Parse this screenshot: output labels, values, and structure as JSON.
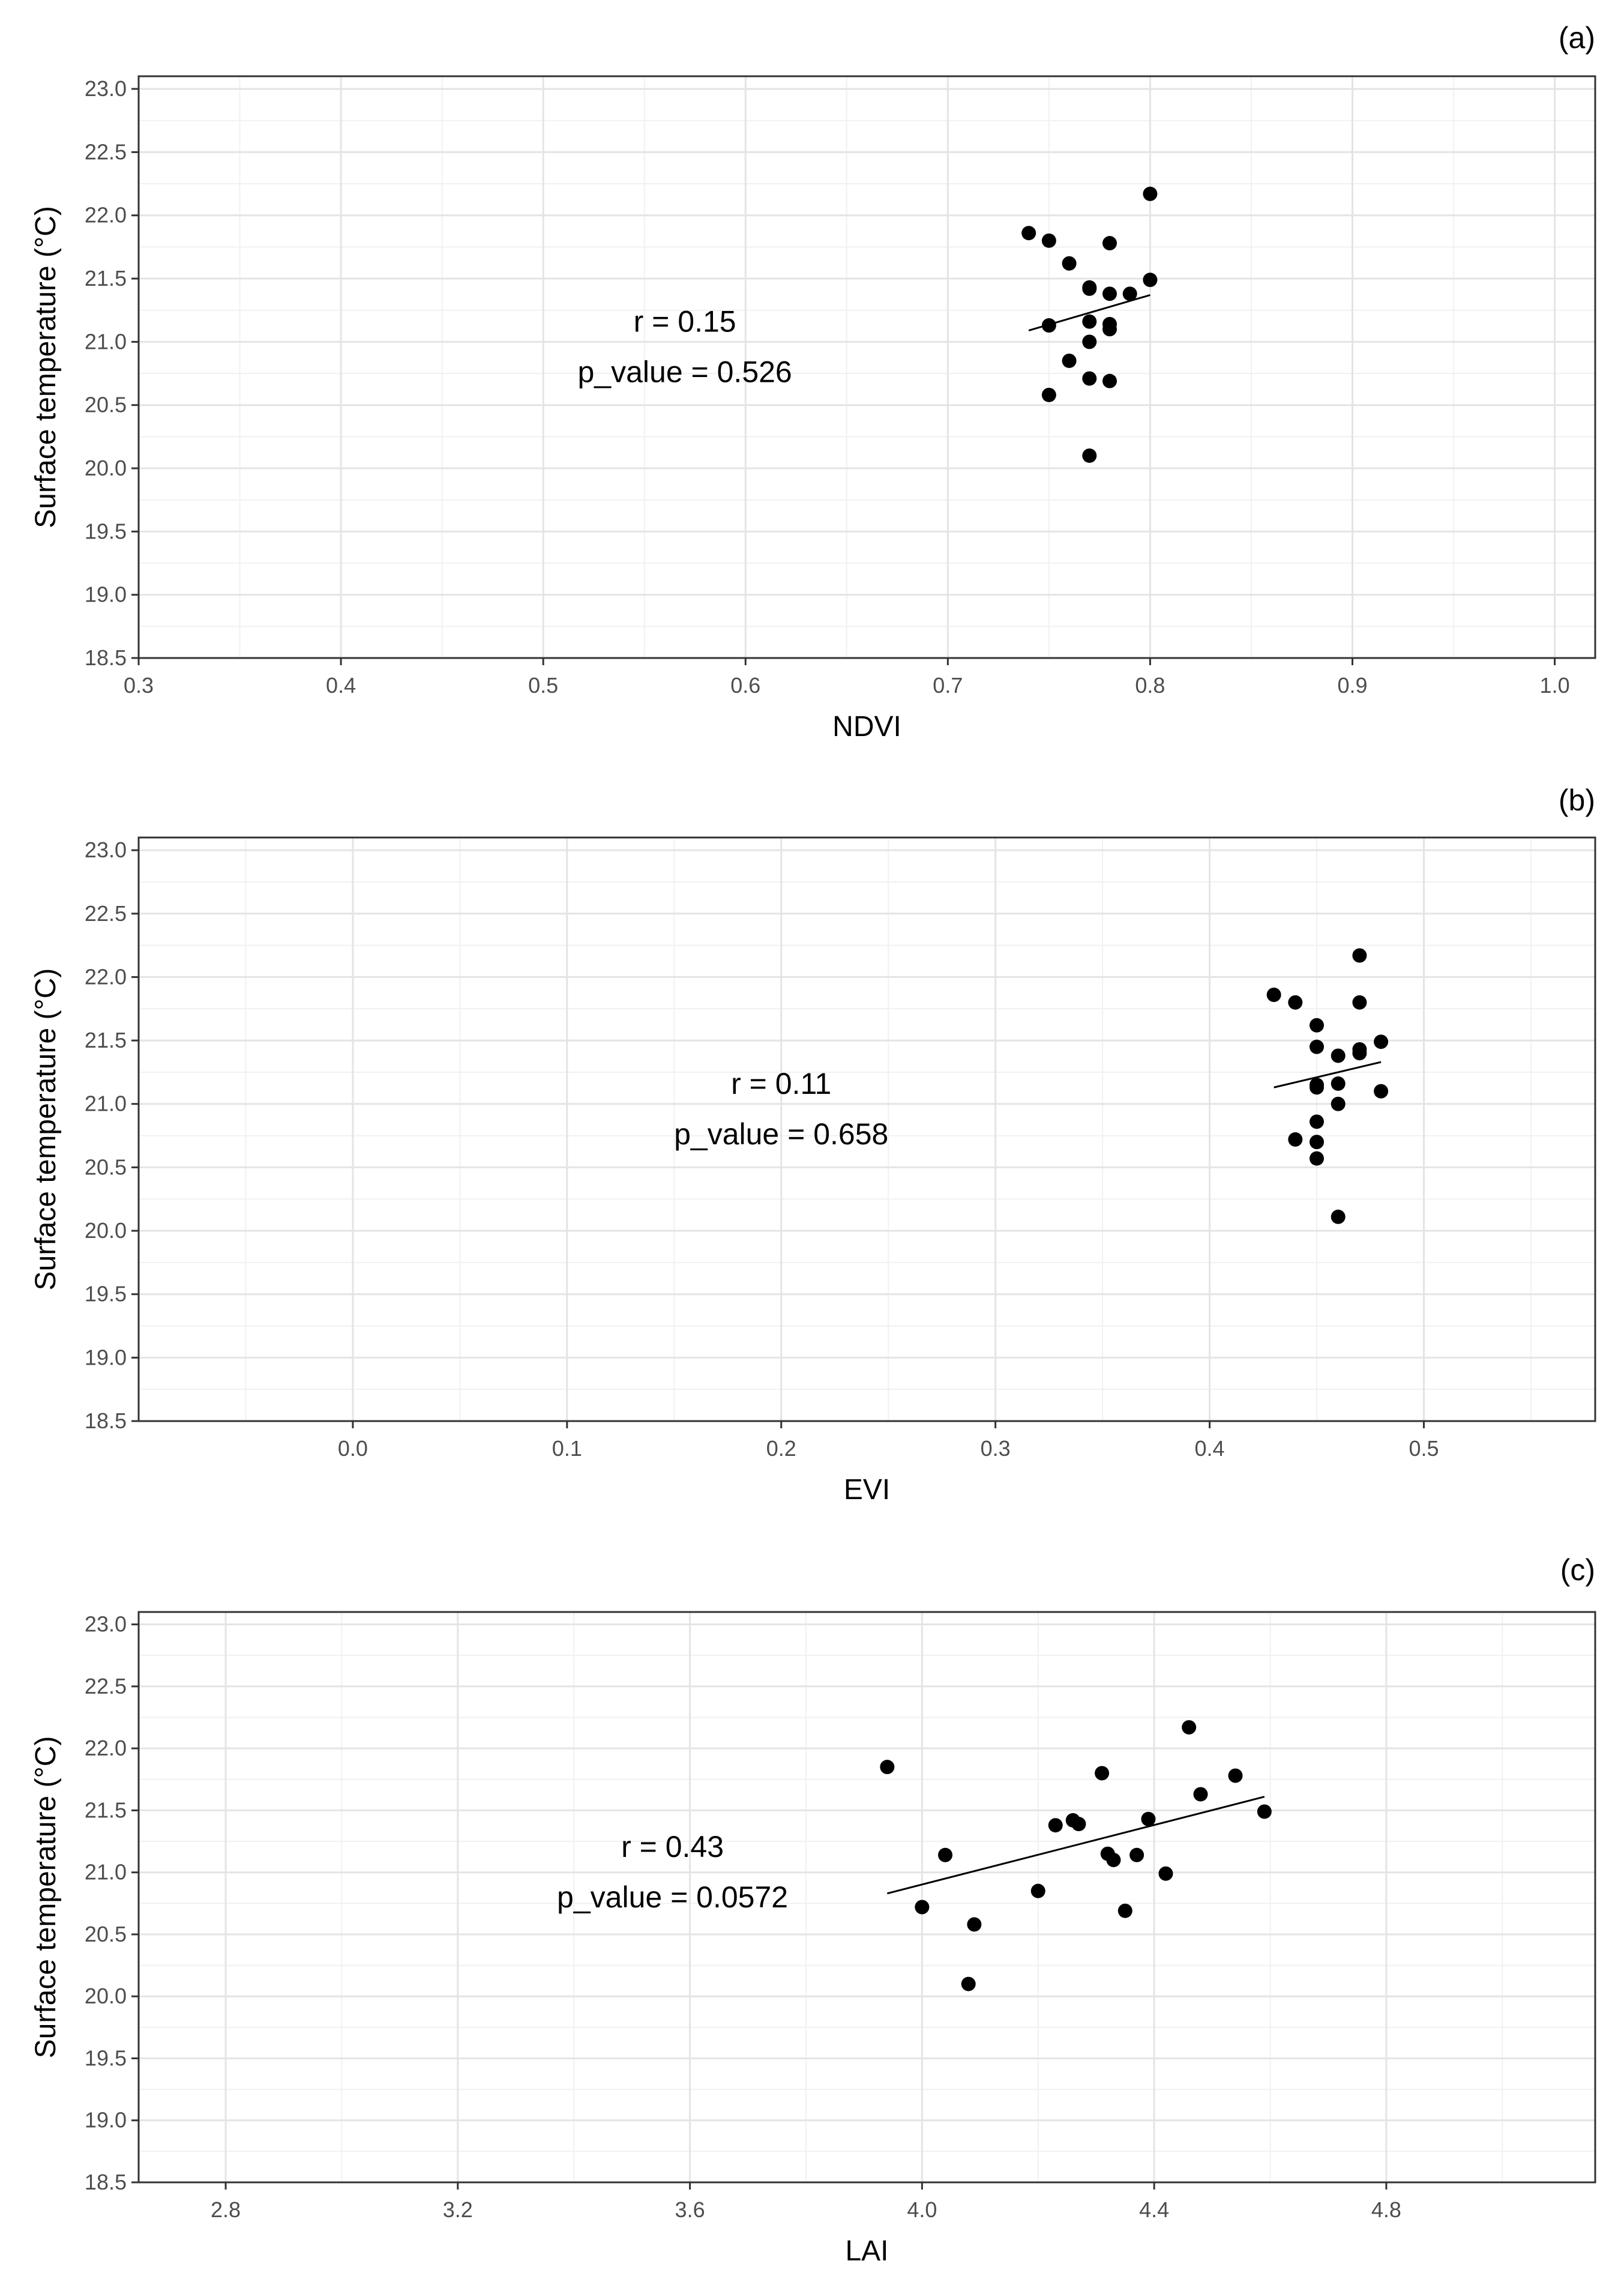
{
  "figure": {
    "point_color": "#000000",
    "line_color": "#000000",
    "grid_major_color": "#e4e4e4",
    "grid_minor_color": "#f1f1f1",
    "panel_border_color": "#333333"
  },
  "chart_data": [
    {
      "type": "scatter",
      "tag": "(a)",
      "xlabel": "NDVI",
      "ylabel": "Surface temperature (°C)",
      "xlim": [
        0.3,
        1.02
      ],
      "ylim": [
        18.5,
        23.1
      ],
      "xticks": [
        0.3,
        0.4,
        0.5,
        0.6,
        0.7,
        0.8,
        0.9,
        1.0
      ],
      "xtick_labels": [
        "0.3",
        "0.4",
        "0.5",
        "0.6",
        "0.7",
        "0.8",
        "0.9",
        "1.0"
      ],
      "yticks": [
        18.5,
        19.0,
        19.5,
        20.0,
        20.5,
        21.0,
        21.5,
        22.0,
        22.5,
        23.0
      ],
      "ytick_labels": [
        "18.5",
        "19.0",
        "19.5",
        "20.0",
        "20.5",
        "21.0",
        "21.5",
        "22.0",
        "22.5",
        "23.0"
      ],
      "grid": true,
      "points": [
        {
          "x": 0.74,
          "y": 21.86
        },
        {
          "x": 0.75,
          "y": 21.8
        },
        {
          "x": 0.76,
          "y": 21.62
        },
        {
          "x": 0.77,
          "y": 21.42
        },
        {
          "x": 0.77,
          "y": 21.43
        },
        {
          "x": 0.78,
          "y": 21.78
        },
        {
          "x": 0.78,
          "y": 21.38
        },
        {
          "x": 0.79,
          "y": 21.38
        },
        {
          "x": 0.8,
          "y": 22.17
        },
        {
          "x": 0.8,
          "y": 21.49
        },
        {
          "x": 0.75,
          "y": 21.13
        },
        {
          "x": 0.77,
          "y": 21.16
        },
        {
          "x": 0.78,
          "y": 21.14
        },
        {
          "x": 0.78,
          "y": 21.1
        },
        {
          "x": 0.77,
          "y": 21.0
        },
        {
          "x": 0.76,
          "y": 20.85
        },
        {
          "x": 0.77,
          "y": 20.71
        },
        {
          "x": 0.78,
          "y": 20.69
        },
        {
          "x": 0.75,
          "y": 20.58
        },
        {
          "x": 0.77,
          "y": 20.1
        }
      ],
      "fit_line": {
        "x": [
          0.74,
          0.8
        ],
        "y": [
          21.09,
          21.37
        ]
      },
      "annotation": {
        "r": "r = 0.15",
        "p": "p_value = 0.526",
        "x": 0.57,
        "y": 20.88
      }
    },
    {
      "type": "scatter",
      "tag": "(b)",
      "xlabel": "EVI",
      "ylabel": "Surface temperature (°C)",
      "xlim": [
        -0.1,
        0.58
      ],
      "ylim": [
        18.5,
        23.1
      ],
      "xticks": [
        0.0,
        0.1,
        0.2,
        0.3,
        0.4,
        0.5
      ],
      "xtick_labels": [
        "0.0",
        "0.1",
        "0.2",
        "0.3",
        "0.4",
        "0.5"
      ],
      "yticks": [
        18.5,
        19.0,
        19.5,
        20.0,
        20.5,
        21.0,
        21.5,
        22.0,
        22.5,
        23.0
      ],
      "ytick_labels": [
        "18.5",
        "19.0",
        "19.5",
        "20.0",
        "20.5",
        "21.0",
        "21.5",
        "22.0",
        "22.5",
        "23.0"
      ],
      "grid": true,
      "points": [
        {
          "x": 0.43,
          "y": 21.86
        },
        {
          "x": 0.44,
          "y": 21.8
        },
        {
          "x": 0.45,
          "y": 21.62
        },
        {
          "x": 0.45,
          "y": 21.45
        },
        {
          "x": 0.46,
          "y": 21.38
        },
        {
          "x": 0.47,
          "y": 21.4
        },
        {
          "x": 0.47,
          "y": 21.43
        },
        {
          "x": 0.47,
          "y": 21.8
        },
        {
          "x": 0.47,
          "y": 22.17
        },
        {
          "x": 0.48,
          "y": 21.49
        },
        {
          "x": 0.45,
          "y": 21.15
        },
        {
          "x": 0.45,
          "y": 21.13
        },
        {
          "x": 0.46,
          "y": 21.16
        },
        {
          "x": 0.48,
          "y": 21.1
        },
        {
          "x": 0.46,
          "y": 21.0
        },
        {
          "x": 0.45,
          "y": 20.86
        },
        {
          "x": 0.44,
          "y": 20.72
        },
        {
          "x": 0.45,
          "y": 20.7
        },
        {
          "x": 0.45,
          "y": 20.57
        },
        {
          "x": 0.46,
          "y": 20.11
        }
      ],
      "fit_line": {
        "x": [
          0.43,
          0.48
        ],
        "y": [
          21.13,
          21.33
        ]
      },
      "annotation": {
        "r": "r = 0.11",
        "p": "p_value = 0.658",
        "x": 0.2,
        "y": 20.88
      }
    },
    {
      "type": "scatter",
      "tag": "(c)",
      "xlabel": "LAI",
      "ylabel": "Surface temperature  (°C)",
      "xlim": [
        2.65,
        5.16
      ],
      "ylim": [
        18.5,
        23.1
      ],
      "xticks": [
        2.8,
        3.2,
        3.6,
        4.0,
        4.4,
        4.8
      ],
      "xtick_labels": [
        "2.8",
        "3.2",
        "3.6",
        "4.0",
        "4.4",
        "4.8"
      ],
      "yticks": [
        18.5,
        19.0,
        19.5,
        20.0,
        20.5,
        21.0,
        21.5,
        22.0,
        22.5,
        23.0
      ],
      "ytick_labels": [
        "18.5",
        "19.0",
        "19.5",
        "20.0",
        "20.5",
        "21.0",
        "21.5",
        "22.0",
        "22.5",
        "23.0"
      ],
      "grid": true,
      "points": [
        {
          "x": 3.94,
          "y": 21.85
        },
        {
          "x": 4.31,
          "y": 21.8
        },
        {
          "x": 4.46,
          "y": 22.17
        },
        {
          "x": 4.54,
          "y": 21.78
        },
        {
          "x": 4.48,
          "y": 21.63
        },
        {
          "x": 4.59,
          "y": 21.49
        },
        {
          "x": 4.39,
          "y": 21.43
        },
        {
          "x": 4.26,
          "y": 21.42
        },
        {
          "x": 4.27,
          "y": 21.39
        },
        {
          "x": 4.23,
          "y": 21.38
        },
        {
          "x": 4.04,
          "y": 21.14
        },
        {
          "x": 4.32,
          "y": 21.15
        },
        {
          "x": 4.37,
          "y": 21.14
        },
        {
          "x": 4.33,
          "y": 21.1
        },
        {
          "x": 4.42,
          "y": 20.99
        },
        {
          "x": 4.2,
          "y": 20.85
        },
        {
          "x": 4.0,
          "y": 20.72
        },
        {
          "x": 4.35,
          "y": 20.69
        },
        {
          "x": 4.09,
          "y": 20.58
        },
        {
          "x": 4.08,
          "y": 20.1
        }
      ],
      "fit_line": {
        "x": [
          3.94,
          4.59
        ],
        "y": [
          20.83,
          21.61
        ]
      },
      "annotation": {
        "r": "r = 0.43",
        "p": "p_value = 0.0572",
        "x": 3.57,
        "y": 20.92
      }
    }
  ]
}
